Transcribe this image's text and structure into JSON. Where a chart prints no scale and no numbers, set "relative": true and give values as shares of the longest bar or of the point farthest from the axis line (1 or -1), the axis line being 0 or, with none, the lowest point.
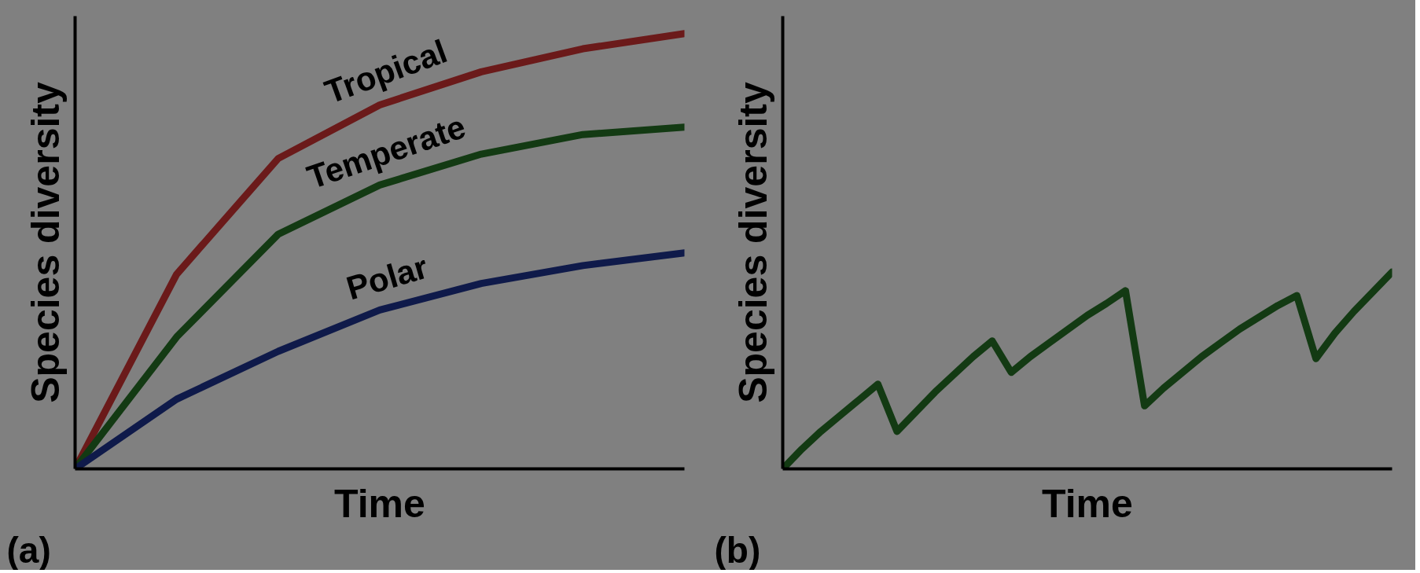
{
  "chart_data": [
    {
      "type": "line",
      "relative": true,
      "xlabel": "Time",
      "ylabel": "Species diversity",
      "annotations": [
        "(a)"
      ],
      "categories": [
        null,
        null,
        null,
        null,
        null,
        null,
        null
      ],
      "series": [
        {
          "name": "Tropical",
          "color": "#6b1a1a",
          "values": [
            0,
            0.447,
            0.713,
            0.836,
            0.912,
            0.965,
            1.0
          ]
        },
        {
          "name": "Temperate",
          "color": "#133a13",
          "values": [
            0,
            0.303,
            0.539,
            0.652,
            0.723,
            0.768,
            0.785
          ]
        },
        {
          "name": "Polar",
          "color": "#0f1a4a",
          "values": [
            0,
            0.16,
            0.27,
            0.365,
            0.426,
            0.467,
            0.496
          ]
        }
      ]
    },
    {
      "type": "line",
      "relative": true,
      "xlabel": "Time",
      "ylabel": "Species diversity",
      "annotations": [
        "(b)"
      ],
      "categories": [
        null,
        null,
        null,
        null,
        null,
        null,
        null,
        null,
        null,
        null,
        null,
        null,
        null,
        null,
        null,
        null,
        null,
        null,
        null,
        null,
        null,
        null,
        null,
        null,
        null,
        null,
        null,
        null,
        null,
        null,
        null,
        null,
        null
      ],
      "series": [
        {
          "color": "#133a13",
          "values": [
            0,
            0.1,
            0.19,
            0.27,
            0.35,
            0.43,
            0.19,
            0.29,
            0.39,
            0.48,
            0.57,
            0.65,
            0.49,
            0.57,
            0.64,
            0.71,
            0.78,
            0.84,
            0.905,
            0.32,
            0.41,
            0.49,
            0.57,
            0.64,
            0.71,
            0.77,
            0.83,
            0.88,
            0.56,
            0.69,
            0.8,
            0.9,
            1.0
          ]
        }
      ]
    }
  ]
}
